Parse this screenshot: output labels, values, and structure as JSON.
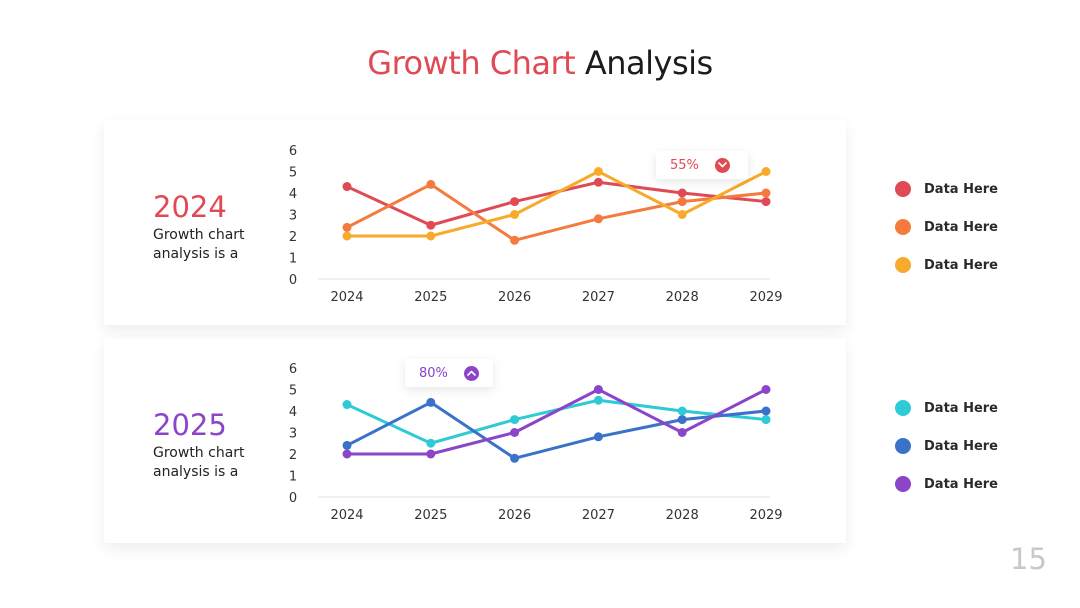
{
  "title": {
    "accent": "Growth Chart",
    "rest": "Analysis"
  },
  "page_number": "15",
  "colors": {
    "red": "#e04a55",
    "orange": "#f47a3e",
    "yellow": "#f8ab2b",
    "cyan": "#2ecad6",
    "blue": "#3a72c9",
    "purple": "#8a45c9"
  },
  "panels": [
    {
      "year": "2024",
      "description": "Growth chart analysis is a",
      "callout": {
        "value": "55%",
        "icon": "chevron-down-icon"
      },
      "legend": [
        "Data Here",
        "Data Here",
        "Data Here"
      ]
    },
    {
      "year": "2025",
      "description": "Growth chart analysis is a",
      "callout": {
        "value": "80%",
        "icon": "chevron-up-icon"
      },
      "legend": [
        "Data Here",
        "Data Here",
        "Data Here"
      ]
    }
  ],
  "chart_data": [
    {
      "type": "line",
      "categories": [
        "2024",
        "2025",
        "2026",
        "2027",
        "2028",
        "2029"
      ],
      "ylim": [
        0,
        6
      ],
      "yticks": [
        "0",
        "1",
        "2",
        "3",
        "4",
        "5",
        "6"
      ],
      "grid": false,
      "legend_position": "right",
      "series": [
        {
          "color": "#e04a55",
          "values": [
            4.3,
            2.5,
            3.6,
            4.5,
            4.0,
            3.6
          ]
        },
        {
          "color": "#f47a3e",
          "values": [
            2.4,
            4.4,
            1.8,
            2.8,
            3.6,
            4.0
          ]
        },
        {
          "color": "#f8ab2b",
          "values": [
            2.0,
            2.0,
            3.0,
            5.0,
            3.0,
            5.0
          ]
        }
      ]
    },
    {
      "type": "line",
      "categories": [
        "2024",
        "2025",
        "2026",
        "2027",
        "2028",
        "2029"
      ],
      "ylim": [
        0,
        6
      ],
      "yticks": [
        "0",
        "1",
        "2",
        "3",
        "4",
        "5",
        "6"
      ],
      "grid": false,
      "legend_position": "right",
      "series": [
        {
          "color": "#2ecad6",
          "values": [
            4.3,
            2.5,
            3.6,
            4.5,
            4.0,
            3.6
          ]
        },
        {
          "color": "#3a72c9",
          "values": [
            2.4,
            4.4,
            1.8,
            2.8,
            3.6,
            4.0
          ]
        },
        {
          "color": "#8a45c9",
          "values": [
            2.0,
            2.0,
            3.0,
            5.0,
            3.0,
            5.0
          ]
        }
      ]
    }
  ]
}
